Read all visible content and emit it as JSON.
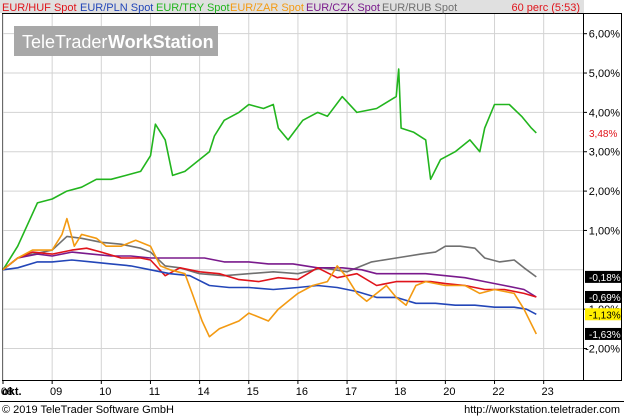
{
  "legend": {
    "items": [
      {
        "label": "EUR/HUF Spot",
        "color": "#e0141b"
      },
      {
        "label": "EUR/PLN Spot",
        "color": "#2346b8"
      },
      {
        "label": "EUR/TRY Spot",
        "color": "#22b51e"
      },
      {
        "label": "EUR/ZAR Spot",
        "color": "#f39a12"
      },
      {
        "label": "EUR/CZK Spot",
        "color": "#7a1a8c"
      },
      {
        "label": "EUR/RUB Spot",
        "color": "#707070"
      }
    ],
    "period": "60 perc (5:53)"
  },
  "watermark": {
    "part1": "TeleTrader",
    "part2": "WorkStation"
  },
  "footer": {
    "left": "© 2019 TeleTrader Software GmbH",
    "right": "http://workstation.teletrader.com"
  },
  "x_axis_label": "okt.",
  "colors": {
    "grid": "#d3d3d3",
    "frame": "#000000",
    "legend_bg": "#e0e0e0"
  },
  "chart_data": {
    "type": "line",
    "x_ticks": [
      "08",
      "09",
      "10",
      "11",
      "14",
      "15",
      "16",
      "17",
      "18",
      "20",
      "22",
      "23"
    ],
    "y_ticks": [
      "6,00%",
      "5,00%",
      "4,00%",
      "3,00%",
      "2,00%",
      "1,00%",
      "-1,00%",
      "-2,00%"
    ],
    "ylim": [
      -2.8,
      6.5
    ],
    "xlim": [
      0,
      11.8
    ],
    "series": [
      {
        "name": "EUR/TRY Spot",
        "color": "#22b51e",
        "last_label": "3,48%",
        "points": [
          [
            0,
            0
          ],
          [
            0.3,
            0.6
          ],
          [
            0.7,
            1.7
          ],
          [
            1.0,
            1.8
          ],
          [
            1.3,
            2.0
          ],
          [
            1.6,
            2.1
          ],
          [
            1.9,
            2.3
          ],
          [
            2.2,
            2.3
          ],
          [
            2.5,
            2.4
          ],
          [
            2.8,
            2.5
          ],
          [
            3.0,
            2.9
          ],
          [
            3.1,
            3.7
          ],
          [
            3.3,
            3.3
          ],
          [
            3.45,
            2.4
          ],
          [
            3.7,
            2.5
          ],
          [
            3.9,
            2.7
          ],
          [
            4.2,
            3.0
          ],
          [
            4.3,
            3.4
          ],
          [
            4.5,
            3.8
          ],
          [
            4.8,
            4.0
          ],
          [
            5.0,
            4.2
          ],
          [
            5.3,
            4.1
          ],
          [
            5.5,
            4.2
          ],
          [
            5.6,
            3.6
          ],
          [
            5.8,
            3.3
          ],
          [
            6.1,
            3.8
          ],
          [
            6.4,
            4.0
          ],
          [
            6.6,
            3.9
          ],
          [
            6.9,
            4.4
          ],
          [
            7.2,
            4.0
          ],
          [
            7.6,
            4.1
          ],
          [
            8.0,
            4.4
          ],
          [
            8.05,
            5.1
          ],
          [
            8.1,
            3.6
          ],
          [
            8.35,
            3.5
          ],
          [
            8.6,
            3.3
          ],
          [
            8.7,
            2.3
          ],
          [
            8.9,
            2.8
          ],
          [
            9.2,
            3.0
          ],
          [
            9.5,
            3.3
          ],
          [
            9.7,
            3.0
          ],
          [
            9.8,
            3.6
          ],
          [
            10.0,
            4.2
          ],
          [
            10.3,
            4.2
          ],
          [
            10.55,
            3.9
          ],
          [
            10.75,
            3.6
          ],
          [
            10.85,
            3.48
          ]
        ]
      },
      {
        "name": "EUR/RUB Spot",
        "color": "#707070",
        "last_label": "-0,18%",
        "points": [
          [
            0,
            0
          ],
          [
            0.3,
            0.3
          ],
          [
            0.6,
            0.4
          ],
          [
            1.0,
            0.5
          ],
          [
            1.3,
            0.85
          ],
          [
            1.6,
            0.8
          ],
          [
            2.0,
            0.7
          ],
          [
            2.4,
            0.65
          ],
          [
            2.8,
            0.55
          ],
          [
            3.0,
            0.45
          ],
          [
            3.3,
            0.1
          ],
          [
            3.6,
            0.05
          ],
          [
            4.0,
            -0.1
          ],
          [
            4.5,
            -0.15
          ],
          [
            5.0,
            -0.1
          ],
          [
            5.5,
            -0.05
          ],
          [
            6.0,
            -0.1
          ],
          [
            6.5,
            0.05
          ],
          [
            7.0,
            -0.05
          ],
          [
            7.5,
            0.2
          ],
          [
            8.0,
            0.3
          ],
          [
            8.5,
            0.4
          ],
          [
            8.8,
            0.45
          ],
          [
            9.0,
            0.6
          ],
          [
            9.3,
            0.6
          ],
          [
            9.6,
            0.55
          ],
          [
            9.8,
            0.3
          ],
          [
            10.1,
            0.2
          ],
          [
            10.4,
            0.25
          ],
          [
            10.6,
            0.05
          ],
          [
            10.85,
            -0.18
          ]
        ]
      },
      {
        "name": "EUR/CZK Spot",
        "color": "#7a1a8c",
        "last_label": "-0,69%",
        "points": [
          [
            0,
            0
          ],
          [
            0.3,
            0.3
          ],
          [
            0.7,
            0.4
          ],
          [
            1.0,
            0.35
          ],
          [
            1.4,
            0.45
          ],
          [
            1.8,
            0.4
          ],
          [
            2.2,
            0.35
          ],
          [
            2.6,
            0.35
          ],
          [
            3.0,
            0.3
          ],
          [
            3.3,
            0.3
          ],
          [
            3.7,
            0.3
          ],
          [
            4.1,
            0.3
          ],
          [
            4.5,
            0.2
          ],
          [
            5.0,
            0.2
          ],
          [
            5.4,
            0.15
          ],
          [
            5.9,
            0.15
          ],
          [
            6.4,
            0.05
          ],
          [
            6.9,
            0.05
          ],
          [
            7.3,
            0.0
          ],
          [
            7.6,
            -0.1
          ],
          [
            8.0,
            -0.1
          ],
          [
            8.3,
            -0.1
          ],
          [
            8.6,
            -0.1
          ],
          [
            9.0,
            -0.15
          ],
          [
            9.4,
            -0.2
          ],
          [
            9.8,
            -0.3
          ],
          [
            10.2,
            -0.4
          ],
          [
            10.6,
            -0.5
          ],
          [
            10.85,
            -0.69
          ]
        ]
      },
      {
        "name": "EUR/HUF Spot",
        "color": "#e0141b",
        "last_label": "-0,69%",
        "points": [
          [
            0,
            0
          ],
          [
            0.3,
            0.3
          ],
          [
            0.6,
            0.45
          ],
          [
            1.0,
            0.4
          ],
          [
            1.4,
            0.5
          ],
          [
            1.7,
            0.55
          ],
          [
            2.0,
            0.45
          ],
          [
            2.4,
            0.3
          ],
          [
            2.8,
            0.3
          ],
          [
            3.0,
            0.25
          ],
          [
            3.3,
            -0.15
          ],
          [
            3.6,
            0.05
          ],
          [
            4.0,
            -0.05
          ],
          [
            4.4,
            -0.1
          ],
          [
            4.8,
            -0.25
          ],
          [
            5.2,
            -0.3
          ],
          [
            5.6,
            -0.2
          ],
          [
            6.0,
            -0.25
          ],
          [
            6.4,
            0.05
          ],
          [
            6.8,
            -0.2
          ],
          [
            7.2,
            -0.1
          ],
          [
            7.6,
            -0.4
          ],
          [
            8.0,
            -0.3
          ],
          [
            8.4,
            -0.3
          ],
          [
            8.7,
            -0.3
          ],
          [
            9.0,
            -0.35
          ],
          [
            9.4,
            -0.4
          ],
          [
            9.8,
            -0.5
          ],
          [
            10.2,
            -0.5
          ],
          [
            10.6,
            -0.6
          ],
          [
            10.85,
            -0.69
          ]
        ]
      },
      {
        "name": "EUR/PLN Spot",
        "color": "#2346b8",
        "last_label": "-1,13%",
        "points": [
          [
            0,
            0
          ],
          [
            0.3,
            0.05
          ],
          [
            0.7,
            0.2
          ],
          [
            1.0,
            0.2
          ],
          [
            1.4,
            0.25
          ],
          [
            1.8,
            0.2
          ],
          [
            2.2,
            0.15
          ],
          [
            2.6,
            0.1
          ],
          [
            3.0,
            0.0
          ],
          [
            3.4,
            -0.1
          ],
          [
            3.8,
            -0.15
          ],
          [
            4.2,
            -0.4
          ],
          [
            4.6,
            -0.45
          ],
          [
            5.0,
            -0.45
          ],
          [
            5.5,
            -0.5
          ],
          [
            6.0,
            -0.45
          ],
          [
            6.4,
            -0.4
          ],
          [
            6.8,
            -0.45
          ],
          [
            7.2,
            -0.55
          ],
          [
            7.6,
            -0.7
          ],
          [
            8.0,
            -0.7
          ],
          [
            8.4,
            -0.85
          ],
          [
            8.8,
            -0.85
          ],
          [
            9.2,
            -0.9
          ],
          [
            9.6,
            -0.9
          ],
          [
            10.0,
            -0.95
          ],
          [
            10.4,
            -0.95
          ],
          [
            10.65,
            -1.0
          ],
          [
            10.85,
            -1.13
          ]
        ]
      },
      {
        "name": "EUR/ZAR Spot",
        "color": "#f39a12",
        "last_label": "-1,63%",
        "points": [
          [
            0,
            0
          ],
          [
            0.3,
            0.3
          ],
          [
            0.6,
            0.5
          ],
          [
            1.0,
            0.5
          ],
          [
            1.2,
            0.9
          ],
          [
            1.3,
            1.3
          ],
          [
            1.45,
            0.6
          ],
          [
            1.6,
            0.9
          ],
          [
            1.9,
            0.8
          ],
          [
            2.1,
            0.6
          ],
          [
            2.4,
            0.6
          ],
          [
            2.7,
            0.75
          ],
          [
            3.0,
            0.6
          ],
          [
            3.2,
            0.1
          ],
          [
            3.4,
            0.0
          ],
          [
            3.7,
            -0.1
          ],
          [
            3.85,
            -0.6
          ],
          [
            4.05,
            -1.3
          ],
          [
            4.2,
            -1.7
          ],
          [
            4.4,
            -1.5
          ],
          [
            4.6,
            -1.4
          ],
          [
            4.8,
            -1.3
          ],
          [
            5.0,
            -1.1
          ],
          [
            5.2,
            -1.2
          ],
          [
            5.4,
            -1.3
          ],
          [
            5.6,
            -1.0
          ],
          [
            5.8,
            -0.8
          ],
          [
            6.0,
            -0.6
          ],
          [
            6.3,
            -0.4
          ],
          [
            6.6,
            -0.3
          ],
          [
            6.8,
            0.1
          ],
          [
            7.0,
            -0.2
          ],
          [
            7.2,
            -0.6
          ],
          [
            7.4,
            -0.8
          ],
          [
            7.6,
            -0.6
          ],
          [
            7.8,
            -0.4
          ],
          [
            8.0,
            -0.7
          ],
          [
            8.2,
            -0.9
          ],
          [
            8.4,
            -0.4
          ],
          [
            8.6,
            -0.3
          ],
          [
            9.0,
            -0.4
          ],
          [
            9.4,
            -0.4
          ],
          [
            9.7,
            -0.6
          ],
          [
            10.0,
            -0.5
          ],
          [
            10.4,
            -0.6
          ],
          [
            10.6,
            -1.0
          ],
          [
            10.85,
            -1.63
          ]
        ]
      }
    ]
  }
}
